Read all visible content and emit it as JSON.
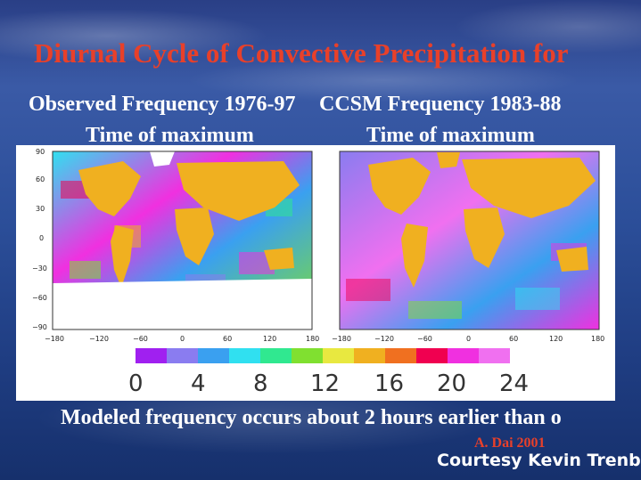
{
  "slide": {
    "title": "Diurnal Cycle of Convective Precipitation  for",
    "left_map": {
      "heading": "Observed Frequency 1976-97",
      "subheading": "Time of maximum"
    },
    "right_map": {
      "heading": "CCSM  Frequency 1983-88",
      "subheading": "Time of maximum"
    },
    "footer": "Modeled frequency occurs about 2 hours earlier than o",
    "credit_author": "A. Dai 2001",
    "credit_courtesy": "Courtesy Kevin Trenbe"
  },
  "map_axes": {
    "lat_ticks": [
      "90",
      "60",
      "30",
      "0",
      "−30",
      "−60",
      "−90"
    ],
    "lon_ticks": [
      "−180",
      "−120",
      "−60",
      "0",
      "60",
      "120",
      "180"
    ]
  },
  "colorbar": {
    "colors": [
      "#a020f0",
      "#8a7cf0",
      "#3aa0f0",
      "#30e0f0",
      "#30e890",
      "#80e030",
      "#e8e840",
      "#f0b020",
      "#f07020",
      "#f00050",
      "#f030e0",
      "#f070f0"
    ],
    "labels": [
      "0",
      "4",
      "8",
      "12",
      "16",
      "20",
      "24"
    ]
  }
}
